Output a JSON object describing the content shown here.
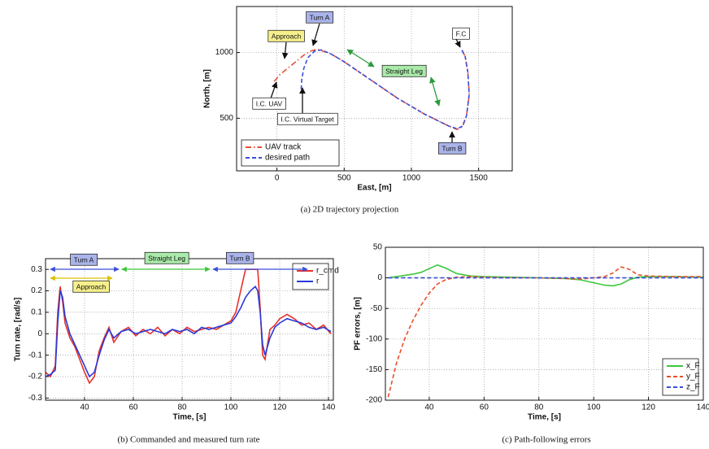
{
  "chart_data": [
    {
      "type": "line",
      "caption": "(a) 2D trajectory projection",
      "xlabel": "East, [m]",
      "ylabel": "North, [m]",
      "xlim": [
        -300,
        1750
      ],
      "ylim": [
        100,
        1350
      ],
      "xticks": [
        0,
        500,
        1000,
        1500
      ],
      "yticks": [
        500,
        1000
      ],
      "grid": true,
      "legend": "lower left",
      "annotations": [
        "Approach",
        "Turn A",
        "Straight Leg",
        "F.C",
        "I.C. UAV",
        "I.C. Virtual Target",
        "Turn B"
      ],
      "series": [
        {
          "name": "UAV track",
          "color": "#e8503a",
          "linestyle": "dashdot",
          "x": [
            -20,
            20,
            80,
            140,
            200,
            250,
            300,
            400,
            500,
            600,
            700,
            800,
            900,
            1000,
            1100,
            1200,
            1280,
            1340,
            1380,
            1410,
            1430,
            1420,
            1400,
            1370
          ],
          "values": [
            780,
            830,
            880,
            930,
            980,
            1010,
            1025,
            990,
            930,
            860,
            790,
            720,
            650,
            590,
            530,
            480,
            440,
            415,
            435,
            520,
            680,
            850,
            970,
            1030
          ]
        },
        {
          "name": "desired path",
          "color": "#3a4fd8",
          "linestyle": "dashed",
          "x": [
            180,
            185,
            200,
            230,
            280,
            330,
            400,
            500,
            600,
            700,
            800,
            900,
            1000,
            1100,
            1200,
            1280,
            1340,
            1380,
            1410,
            1430,
            1420,
            1400,
            1370
          ],
          "values": [
            720,
            800,
            880,
            960,
            1010,
            1020,
            990,
            930,
            860,
            790,
            720,
            650,
            590,
            530,
            480,
            440,
            420,
            440,
            520,
            680,
            850,
            970,
            1030
          ]
        }
      ]
    },
    {
      "type": "line",
      "caption": "(b) Commanded and measured turn rate",
      "xlabel": "Time, [s]",
      "ylabel": "Turn rate, [rad/s]",
      "xlim": [
        24,
        142
      ],
      "ylim": [
        -0.31,
        0.35
      ],
      "xticks": [
        40,
        60,
        80,
        100,
        120,
        140
      ],
      "yticks": [
        -0.3,
        -0.2,
        -0.1,
        0,
        0.1,
        0.2,
        0.3
      ],
      "grid": true,
      "legend": "upper right",
      "annotations": [
        "Turn A",
        "Approach",
        "Straight Leg",
        "Turn B"
      ],
      "x": [
        24,
        26,
        28,
        29,
        30,
        31,
        32,
        34,
        36,
        38,
        40,
        42,
        44,
        46,
        48,
        50,
        52,
        55,
        58,
        61,
        64,
        67,
        70,
        73,
        76,
        79,
        82,
        85,
        88,
        91,
        94,
        97,
        100,
        102,
        104,
        106,
        108,
        110,
        111,
        112,
        113,
        114,
        116,
        118,
        120,
        123,
        126,
        129,
        132,
        135,
        138,
        141
      ],
      "series": [
        {
          "name": "r_cmd",
          "color": "#e8302a",
          "linestyle": "solid",
          "values": [
            -0.18,
            -0.2,
            -0.15,
            0.1,
            0.22,
            0.15,
            0.05,
            -0.02,
            -0.06,
            -0.12,
            -0.18,
            -0.23,
            -0.2,
            -0.08,
            -0.02,
            0.03,
            -0.04,
            0.01,
            0.03,
            -0.01,
            0.02,
            0,
            0.03,
            -0.01,
            0.02,
            0,
            0.03,
            0.01,
            0.02,
            0.03,
            0.02,
            0.04,
            0.06,
            0.1,
            0.2,
            0.3,
            0.3,
            0.3,
            0.3,
            0.12,
            -0.1,
            -0.12,
            0.02,
            0.04,
            0.07,
            0.09,
            0.07,
            0.04,
            0.05,
            0.02,
            0.04,
            0
          ]
        },
        {
          "name": "r",
          "color": "#2a3ad8",
          "linestyle": "solid",
          "values": [
            -0.2,
            -0.19,
            -0.17,
            0.05,
            0.2,
            0.17,
            0.08,
            0,
            -0.05,
            -0.1,
            -0.15,
            -0.2,
            -0.18,
            -0.1,
            -0.03,
            0.02,
            -0.02,
            0.01,
            0.02,
            0,
            0.01,
            0.02,
            0.01,
            0,
            0.02,
            0.01,
            0.02,
            0,
            0.03,
            0.02,
            0.03,
            0.04,
            0.05,
            0.08,
            0.12,
            0.17,
            0.2,
            0.22,
            0.2,
            0.1,
            -0.05,
            -0.1,
            -0.02,
            0.03,
            0.05,
            0.07,
            0.06,
            0.05,
            0.03,
            0.02,
            0.03,
            0.01
          ]
        }
      ]
    },
    {
      "type": "line",
      "caption": "(c) Path-following errors",
      "xlabel": "Time, [s]",
      "ylabel": "PF errors, [m]",
      "xlim": [
        24,
        140
      ],
      "ylim": [
        -200,
        50
      ],
      "xticks": [
        40,
        60,
        80,
        100,
        120,
        140
      ],
      "yticks": [
        -200,
        -150,
        -100,
        -50,
        0,
        50
      ],
      "grid": true,
      "legend": "lower right",
      "x": [
        25,
        28,
        31,
        34,
        37,
        40,
        43,
        46,
        50,
        55,
        60,
        70,
        80,
        90,
        95,
        100,
        104,
        107,
        110,
        113,
        116,
        120,
        130,
        140
      ],
      "series": [
        {
          "name": "x_F",
          "color": "#3cc83c",
          "linestyle": "solid",
          "values": [
            0,
            2,
            4,
            6,
            9,
            15,
            21,
            16,
            7,
            3,
            2,
            1,
            0,
            -1,
            -3,
            -8,
            -12,
            -13,
            -10,
            -3,
            1,
            2,
            2,
            1
          ]
        },
        {
          "name": "y_F",
          "color": "#e8502a",
          "linestyle": "dashed",
          "values": [
            -195,
            -140,
            -100,
            -70,
            -45,
            -25,
            -10,
            -3,
            1,
            2,
            1,
            0,
            0,
            -1,
            -2,
            0,
            2,
            8,
            18,
            14,
            5,
            3,
            2,
            2
          ]
        },
        {
          "name": "z_F",
          "color": "#3a4fd8",
          "linestyle": "dashed",
          "values": [
            0,
            0,
            0,
            0,
            0,
            0,
            0,
            0,
            0,
            0,
            0,
            0,
            0,
            0,
            0,
            0,
            0,
            0,
            0,
            0,
            0,
            0,
            0,
            0
          ]
        }
      ]
    }
  ]
}
